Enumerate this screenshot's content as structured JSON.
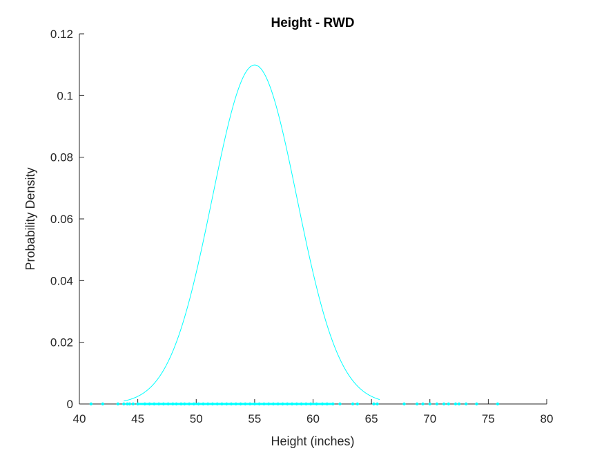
{
  "chart_data": {
    "type": "line",
    "title": "Height - RWD",
    "xlabel": "Height (inches)",
    "ylabel": "Probability Density",
    "xlim": [
      40,
      80
    ],
    "ylim": [
      0,
      0.12
    ],
    "xticks": [
      40,
      45,
      50,
      55,
      60,
      65,
      70,
      75,
      80
    ],
    "yticks": [
      0,
      0.02,
      0.04,
      0.06,
      0.08,
      0.1,
      0.12
    ],
    "xtick_labels": [
      "40",
      "45",
      "50",
      "55",
      "60",
      "65",
      "70",
      "75",
      "80"
    ],
    "ytick_labels": [
      "0",
      "0.02",
      "0.04",
      "0.06",
      "0.08",
      "0.1",
      "0.12"
    ],
    "grid": false,
    "color": "#00ffff",
    "curve": {
      "distribution": "normal",
      "mean": 55.0,
      "std": 3.63,
      "x_range": [
        43.8,
        65.7
      ]
    },
    "rug": [
      41.0,
      42.0,
      43.3,
      43.8,
      44.1,
      44.3,
      44.6,
      45.0,
      45.6,
      46.0,
      46.4,
      46.8,
      47.2,
      47.6,
      48.0,
      48.3,
      48.7,
      49.0,
      49.4,
      49.8,
      50.2,
      50.6,
      51.0,
      51.4,
      51.8,
      52.2,
      52.6,
      53.0,
      53.4,
      53.8,
      54.2,
      54.6,
      55.0,
      55.4,
      55.8,
      56.2,
      56.6,
      57.0,
      57.4,
      57.8,
      58.2,
      58.6,
      59.0,
      59.4,
      59.8,
      60.3,
      60.8,
      61.2,
      61.7,
      62.3,
      63.4,
      63.8,
      65.2,
      65.5,
      67.8,
      68.9,
      69.4,
      70.0,
      70.6,
      71.2,
      71.6,
      72.2,
      72.5,
      73.1,
      74.0,
      75.8
    ]
  }
}
